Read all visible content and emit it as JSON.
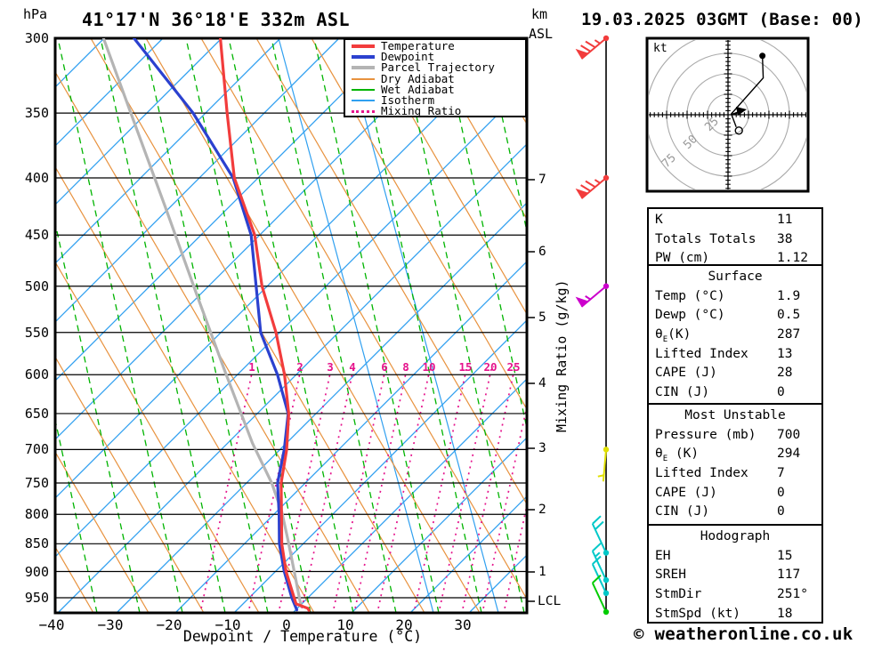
{
  "header": {
    "title": "41°17'N 36°18'E 332m ASL",
    "datetime": "19.03.2025 03GMT (Base: 00)",
    "pressure_unit": "hPa",
    "km_unit_line1": "km",
    "km_unit_line2": "ASL"
  },
  "legend": {
    "items": [
      {
        "label": "Temperature",
        "color": "#f23c3c",
        "style": "thick"
      },
      {
        "label": "Dewpoint",
        "color": "#2b41cf",
        "style": "thick"
      },
      {
        "label": "Parcel Trajectory",
        "color": "#b4b4b4",
        "style": "thick"
      },
      {
        "label": "Dry Adiabat",
        "color": "#e8923e",
        "style": "thin"
      },
      {
        "label": "Wet Adiabat",
        "color": "#00b400",
        "style": "thin"
      },
      {
        "label": "Isotherm",
        "color": "#30a0f0",
        "style": "thin"
      },
      {
        "label": "Mixing Ratio",
        "color": "#e5148c",
        "style": "dotted"
      }
    ]
  },
  "axes": {
    "xlabel": "Dewpoint / Temperature (°C)",
    "right_axis_label": "Mixing Ratio (g/kg)",
    "lcl_label": "LCL",
    "mixing_ratio_labels": [
      "1",
      "2",
      "3",
      "4",
      "6",
      "8",
      "10",
      "15",
      "20",
      "25"
    ]
  },
  "chart_data": {
    "type": "line",
    "subtype": "skewt_logp_sounding",
    "title": "41°17'N 36°18'E 332m ASL",
    "datetime": "19.03.2025 03GMT (Base: 00)",
    "x_axis": {
      "label": "Dewpoint / Temperature (°C)",
      "ticks": [
        -40,
        -30,
        -20,
        -10,
        0,
        10,
        20,
        30
      ],
      "unit": "°C"
    },
    "y_axis": {
      "unit": "hPa",
      "scale": "log",
      "ticks": [
        300,
        350,
        400,
        450,
        500,
        550,
        600,
        650,
        700,
        750,
        800,
        850,
        900,
        950
      ]
    },
    "secondary_y_axis": {
      "unit": "km ASL",
      "ticks": [
        7,
        6,
        5,
        4,
        3,
        2,
        1
      ],
      "extra_marker": "LCL"
    },
    "mixing_ratio_lines_gkg": [
      1,
      2,
      3,
      4,
      6,
      8,
      10,
      15,
      20,
      25
    ],
    "series": [
      {
        "name": "Temperature",
        "color": "#f23c3c",
        "points_p_T": [
          [
            300,
            -37.7
          ],
          [
            350,
            -33.1
          ],
          [
            400,
            -28.9
          ],
          [
            450,
            -22.8
          ],
          [
            500,
            -19.2
          ],
          [
            550,
            -14.7
          ],
          [
            600,
            -11.3
          ],
          [
            650,
            -8.8
          ],
          [
            700,
            -7.5
          ],
          [
            750,
            -6.9
          ],
          [
            800,
            -5.4
          ],
          [
            850,
            -4.0
          ],
          [
            900,
            -2.0
          ],
          [
            950,
            0.6
          ],
          [
            962,
            1.2
          ],
          [
            971,
            3.4
          ],
          [
            975,
            3.7
          ]
        ]
      },
      {
        "name": "Dewpoint",
        "color": "#2b41cf",
        "points_p_T": [
          [
            300,
            -52.4
          ],
          [
            350,
            -38.9
          ],
          [
            400,
            -29.1
          ],
          [
            450,
            -23.4
          ],
          [
            500,
            -20.2
          ],
          [
            550,
            -17.3
          ],
          [
            600,
            -12.5
          ],
          [
            650,
            -8.9
          ],
          [
            700,
            -7.9
          ],
          [
            750,
            -7.5
          ],
          [
            800,
            -5.8
          ],
          [
            850,
            -4.4
          ],
          [
            900,
            -2.3
          ],
          [
            950,
            0.2
          ],
          [
            974,
            1.6
          ]
        ]
      },
      {
        "name": "Parcel Trajectory",
        "color": "#b4b4b4",
        "points_p_T": [
          [
            300,
            -57.6
          ],
          [
            356,
            -48.6
          ],
          [
            424,
            -39.4
          ],
          [
            507,
            -30.1
          ],
          [
            598,
            -21.4
          ],
          [
            691,
            -13.6
          ],
          [
            750,
            -8.5
          ],
          [
            795,
            -5.5
          ],
          [
            846,
            -3.0
          ],
          [
            900,
            -0.6
          ],
          [
            953,
            1.6
          ],
          [
            967,
            2.2
          ]
        ]
      }
    ],
    "wind_barbs": [
      {
        "pressure_hpa": 300,
        "direction_deg": 230,
        "speed_kt": 75,
        "color": "#f23c3c"
      },
      {
        "pressure_hpa": 400,
        "direction_deg": 230,
        "speed_kt": 75,
        "color": "#f23c3c"
      },
      {
        "pressure_hpa": 500,
        "direction_deg": 230,
        "speed_kt": 55,
        "color": "#cc00cc"
      },
      {
        "pressure_hpa": 700,
        "direction_deg": 185,
        "speed_kt": 5,
        "color": "#e0e000"
      },
      {
        "pressure_hpa": 866,
        "direction_deg": 335,
        "speed_kt": 20,
        "color": "#00c8c8"
      },
      {
        "pressure_hpa": 916,
        "direction_deg": 335,
        "speed_kt": 15,
        "color": "#00c8c8"
      },
      {
        "pressure_hpa": 941,
        "direction_deg": 335,
        "speed_kt": 10,
        "color": "#00c8c8"
      },
      {
        "pressure_hpa": 981,
        "direction_deg": 335,
        "speed_kt": 10,
        "color": "#00cc00"
      }
    ],
    "hodograph": {
      "unit_label": "kt",
      "ring_labels": [
        "25",
        "50",
        "75"
      ],
      "rings_kt": [
        25,
        50,
        75
      ],
      "trace_uv_kt": [
        [
          42,
          72
        ],
        [
          43,
          45
        ],
        [
          4,
          1
        ],
        [
          10,
          -15
        ]
      ],
      "storm_motion": {
        "dir_deg": 251,
        "spd_kt": 18
      }
    },
    "background": {
      "isotherm_color": "#30a0f0",
      "dry_adiabat_color": "#e8923e",
      "wet_adiabat_color": "#00b400",
      "mixing_ratio_color": "#e5148c"
    }
  },
  "indices": {
    "sections": [
      {
        "title": "",
        "rows": [
          {
            "label": "K",
            "value": "11"
          },
          {
            "label": "Totals Totals",
            "value": "38"
          },
          {
            "label": "PW (cm)",
            "value": "1.12"
          }
        ]
      },
      {
        "title": "Surface",
        "rows": [
          {
            "label": "Temp (°C)",
            "value": "1.9"
          },
          {
            "label": "Dewp (°C)",
            "value": "0.5"
          },
          {
            "label": "θ_E(K)",
            "value": "287"
          },
          {
            "label": "Lifted Index",
            "value": "13"
          },
          {
            "label": "CAPE (J)",
            "value": "28"
          },
          {
            "label": "CIN (J)",
            "value": "0"
          }
        ]
      },
      {
        "title": "Most Unstable",
        "rows": [
          {
            "label": "Pressure (mb)",
            "value": "700"
          },
          {
            "label": "θ_E (K)",
            "value": "294"
          },
          {
            "label": "Lifted Index",
            "value": "7"
          },
          {
            "label": "CAPE (J)",
            "value": "0"
          },
          {
            "label": "CIN (J)",
            "value": "0"
          }
        ]
      },
      {
        "title": "Hodograph",
        "rows": [
          {
            "label": "EH",
            "value": "15"
          },
          {
            "label": "SREH",
            "value": "117"
          },
          {
            "label": "StmDir",
            "value": "251°"
          },
          {
            "label": "StmSpd (kt)",
            "value": "18"
          }
        ]
      }
    ]
  },
  "footer": {
    "copyright": "© weatheronline.co.uk"
  }
}
